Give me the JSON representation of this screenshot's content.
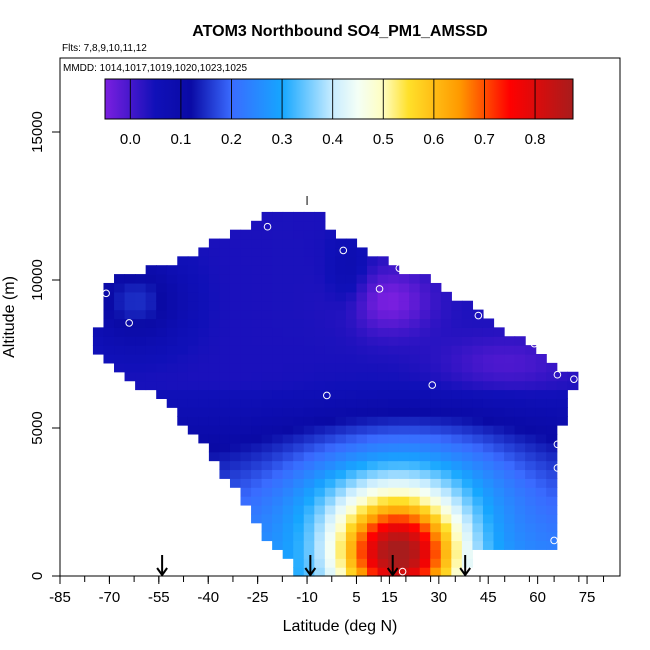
{
  "chart_data": {
    "type": "heatmap",
    "title": "ATOM3 Northbound SO4_PM1_AMSSD",
    "subtitle_flights": "Flts: 7,8,9,10,11,12",
    "subtitle_dates": "MMDD: 1014,1017,1019,1020,1023,1025",
    "xlabel": "Latitude (deg N)",
    "ylabel": "Altitude (m)",
    "xlim": [
      -85,
      85
    ],
    "ylim": [
      0,
      17500
    ],
    "x_ticks": [
      -85,
      -70,
      -55,
      -40,
      -25,
      -10,
      5,
      15,
      30,
      45,
      60,
      75
    ],
    "x_tick_labels": [
      "-85",
      "-70",
      "-55",
      "-40",
      "-25",
      "-10",
      "5",
      "15",
      "30",
      "45",
      "60",
      "75"
    ],
    "y_ticks": [
      0,
      5000,
      10000,
      15000
    ],
    "y_tick_labels": [
      "0",
      "5000",
      "10000",
      "15000"
    ],
    "colorbar": {
      "min": -0.05,
      "max": 0.875,
      "ticks": [
        0.0,
        0.1,
        0.2,
        0.3,
        0.4,
        0.5,
        0.6,
        0.7,
        0.8
      ],
      "tick_labels": [
        "0.0",
        "0.1",
        "0.2",
        "0.3",
        "0.4",
        "0.5",
        "0.6",
        "0.7",
        "0.8"
      ],
      "stops": [
        {
          "v": -0.05,
          "color": "#7b1fe0"
        },
        {
          "v": 0.05,
          "color": "#1010b8"
        },
        {
          "v": 0.12,
          "color": "#0a0aa5"
        },
        {
          "v": 0.2,
          "color": "#3a6bff"
        },
        {
          "v": 0.3,
          "color": "#15a6ff"
        },
        {
          "v": 0.4,
          "color": "#c8ecff"
        },
        {
          "v": 0.45,
          "color": "#f4fff6"
        },
        {
          "v": 0.5,
          "color": "#fffdc0"
        },
        {
          "v": 0.55,
          "color": "#ffe02a"
        },
        {
          "v": 0.65,
          "color": "#ff9a00"
        },
        {
          "v": 0.75,
          "color": "#ff0000"
        },
        {
          "v": 0.875,
          "color": "#a81c1c"
        }
      ]
    },
    "arrow_latitudes": [
      -54,
      -9,
      16,
      38
    ],
    "sample_points": [
      {
        "lat": -10,
        "alt": 12500
      },
      {
        "lat": -22,
        "alt": 11800
      },
      {
        "lat": 1,
        "alt": 11000
      },
      {
        "lat": 18,
        "alt": 10400
      },
      {
        "lat": 12,
        "alt": 9700
      },
      {
        "lat": -71,
        "alt": 9550
      },
      {
        "lat": -64,
        "alt": 8550
      },
      {
        "lat": 42,
        "alt": 8800
      },
      {
        "lat": 59,
        "alt": 7850
      },
      {
        "lat": 66,
        "alt": 6800
      },
      {
        "lat": 71,
        "alt": 6650
      },
      {
        "lat": 28,
        "alt": 6450
      },
      {
        "lat": -4,
        "alt": 6100
      },
      {
        "lat": 66,
        "alt": 4450
      },
      {
        "lat": 66,
        "alt": 3650
      },
      {
        "lat": 65,
        "alt": 1200
      },
      {
        "lat": -23,
        "alt": 200
      },
      {
        "lat": 19,
        "alt": 150
      }
    ]
  }
}
